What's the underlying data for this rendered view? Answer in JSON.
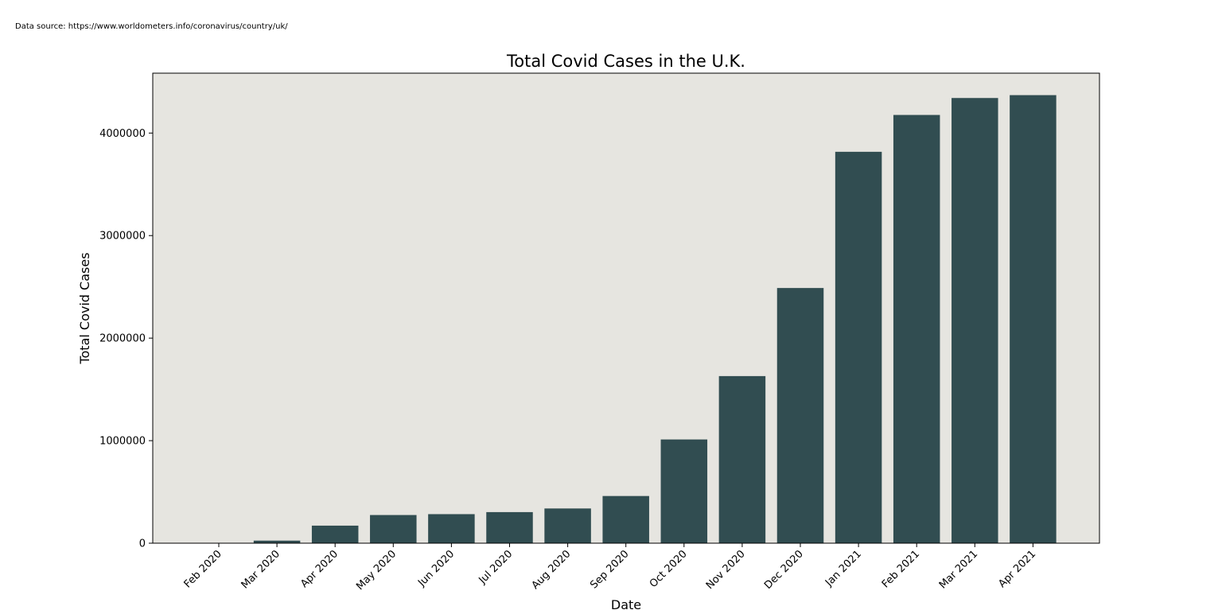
{
  "source_note": "Data source: https://www.worldometers.info/coronavirus/country/uk/",
  "colors": {
    "bar": "#314d51",
    "plot_background": "#e6e5e0",
    "axis": "#000000"
  },
  "chart_data": {
    "type": "bar",
    "title": "Total Covid Cases in the U.K.",
    "xlabel": "Date",
    "ylabel": "Total Covid Cases",
    "categories": [
      "Feb 2020",
      "Mar 2020",
      "Apr 2020",
      "May 2020",
      "Jun 2020",
      "Jul 2020",
      "Aug 2020",
      "Sep 2020",
      "Oct 2020",
      "Nov 2020",
      "Dec 2020",
      "Jan 2021",
      "Feb 2021",
      "Mar 2021",
      "Apr 2021"
    ],
    "values": [
      23,
      25150,
      171253,
      274762,
      283311,
      303181,
      338676,
      460178,
      1011660,
      1629657,
      2488780,
      3817176,
      4176554,
      4341736,
      4369835
    ],
    "ylim": [
      0,
      4584000
    ],
    "yticks": [
      0,
      1000000,
      2000000,
      3000000,
      4000000
    ],
    "ytick_labels": [
      "0",
      "1000000",
      "2000000",
      "3000000",
      "4000000"
    ],
    "grid": false,
    "legend": "none"
  }
}
